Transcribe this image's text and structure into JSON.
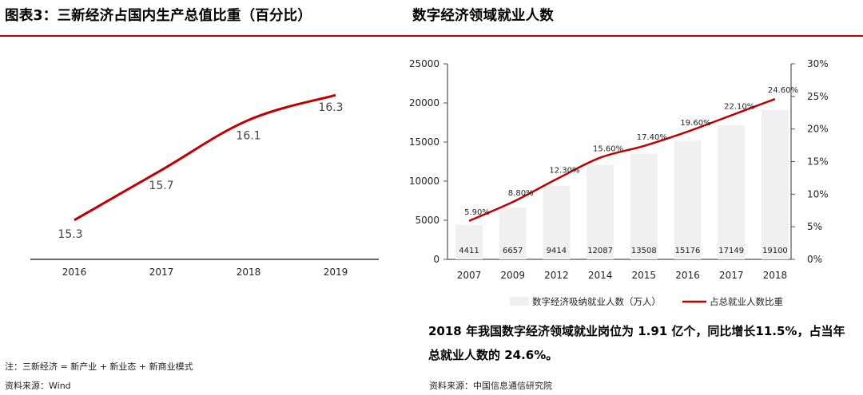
{
  "left_panel": {
    "title": "图表3：三新经济占国内生产总值比重（百分比）",
    "note": "注：三新经济 = 新产业 + 新业态 + 新商业模式",
    "source": "资料来源：Wind"
  },
  "right_panel": {
    "title": "数字经济领域就业人数",
    "summary": "2018 年我国数字经济领域就业岗位为 1.91 亿个，同比增长11.5%，占当年总就业人数的 24.6%。",
    "source": "资料来源：中国信息通信研究院"
  },
  "colors": {
    "accent_red": "#c00000",
    "bar_gray": "#f0f0f0",
    "axis": "#555555"
  },
  "chart_data": [
    {
      "type": "line",
      "title": "",
      "categories": [
        "2016",
        "2017",
        "2018",
        "2019"
      ],
      "series": [
        {
          "values": [
            15.3,
            15.7,
            16.1,
            16.3
          ],
          "labels": [
            "15.3",
            "15.7",
            "16.1",
            "16.3"
          ],
          "color": "#c00000"
        }
      ],
      "ylim": [
        15.05,
        16.55
      ],
      "grid": false,
      "legend": "none"
    },
    {
      "type": "bar",
      "title": "",
      "categories": [
        "2007",
        "2009",
        "2012",
        "2014",
        "2015",
        "2016",
        "2017",
        "2018"
      ],
      "series": [
        {
          "name": "数字经济吸纳就业人数（万人）",
          "type": "bar",
          "axis": "left",
          "values": [
            4411,
            6657,
            9414,
            12087,
            13508,
            15176,
            17149,
            19100
          ],
          "labels": [
            "4411",
            "6657",
            "9414",
            "12087",
            "13508",
            "15176",
            "17149",
            "19100"
          ]
        },
        {
          "name": "占总就业人数比重",
          "type": "line",
          "axis": "right",
          "values": [
            5.9,
            8.8,
            12.3,
            15.6,
            17.4,
            19.6,
            22.1,
            24.6
          ],
          "labels": [
            "5.90%",
            "8.80%",
            "12.30%",
            "15.60%",
            "17.40%",
            "19.60%",
            "22.10%",
            "24.60%"
          ]
        }
      ],
      "y_left": {
        "range": [
          0,
          25000
        ],
        "ticks": [
          "0",
          "5000",
          "10000",
          "15000",
          "20000",
          "25000"
        ]
      },
      "y_right": {
        "range": [
          0,
          30
        ],
        "ticks": [
          "0%",
          "5%",
          "10%",
          "15%",
          "20%",
          "25%",
          "30%"
        ]
      },
      "grid": false,
      "legend": "bottom"
    }
  ]
}
